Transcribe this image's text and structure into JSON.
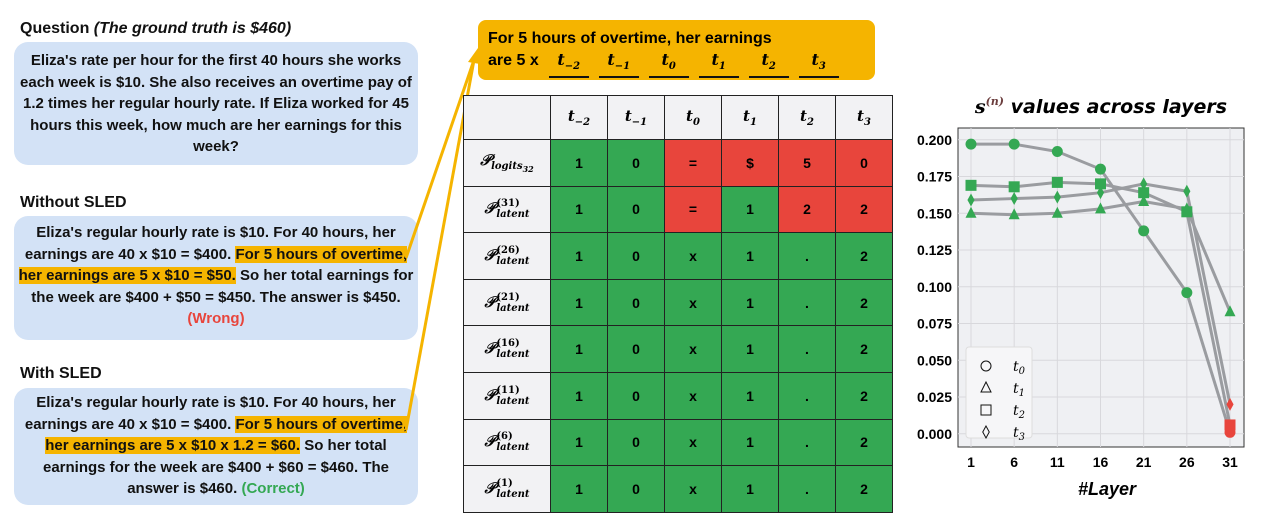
{
  "question": {
    "heading": "Question",
    "ground_truth": "(The ground truth is $460)",
    "text": "Eliza's rate per hour for the first 40 hours she works each week is $10. She also receives an overtime pay of 1.2 times her regular hourly rate. If Eliza worked for 45 hours this week, how much are her earnings for this week?"
  },
  "without": {
    "heading": "Without SLED",
    "pre": "Eliza's regular hourly rate is $10. For 40 hours, her earnings are 40 x $10 = $400. ",
    "highlight": "For 5 hours of overtime, her earnings are 5 x $10 = $50.",
    "post": " So her total earnings for the week are $400 + $50 = $450. The answer is $450. ",
    "verdict": "(Wrong)"
  },
  "with": {
    "heading": "With SLED",
    "pre": "Eliza's regular hourly rate is $10. For 40 hours, her earnings are 40 x $10 = $400. ",
    "highlight": "For 5 hours of overtime, her earnings are 5 x $10 x 1.2 = $60.",
    "post": " So her total earnings for the week are $400 + $60 = $460. The answer is $460. ",
    "verdict": "(Correct)"
  },
  "callout": {
    "line1": "For 5 hours of overtime, her earnings",
    "line2": "are 5 x",
    "tokens": [
      "t",
      "t",
      "t",
      "t",
      "t",
      "t"
    ],
    "subs": [
      "−2",
      "−1",
      "0",
      "1",
      "2",
      "3"
    ]
  },
  "table": {
    "columns": [
      {
        "t": "t",
        "s": "−2"
      },
      {
        "t": "t",
        "s": "−1"
      },
      {
        "t": "t",
        "s": "0"
      },
      {
        "t": "t",
        "s": "1"
      },
      {
        "t": "t",
        "s": "2"
      },
      {
        "t": "t",
        "s": "3"
      }
    ],
    "rows": [
      {
        "label": "𝒫",
        "sub": "logits",
        "subsub": "32",
        "sup": "",
        "cells": [
          "1",
          "0",
          "=",
          "$",
          "5",
          "0"
        ],
        "colors": [
          "g",
          "g",
          "r",
          "r",
          "r",
          "r"
        ]
      },
      {
        "label": "𝒫",
        "sub": "latent",
        "sup": "(31)",
        "cells": [
          "1",
          "0",
          "=",
          "1",
          "2",
          "2"
        ],
        "colors": [
          "g",
          "g",
          "r",
          "g",
          "r",
          "r"
        ]
      },
      {
        "label": "𝒫",
        "sub": "latent",
        "sup": "(26)",
        "cells": [
          "1",
          "0",
          "x",
          "1",
          ".",
          "2"
        ],
        "colors": [
          "g",
          "g",
          "g",
          "g",
          "g",
          "g"
        ]
      },
      {
        "label": "𝒫",
        "sub": "latent",
        "sup": "(21)",
        "cells": [
          "1",
          "0",
          "x",
          "1",
          ".",
          "2"
        ],
        "colors": [
          "g",
          "g",
          "g",
          "g",
          "g",
          "g"
        ]
      },
      {
        "label": "𝒫",
        "sub": "latent",
        "sup": "(16)",
        "cells": [
          "1",
          "0",
          "x",
          "1",
          ".",
          "2"
        ],
        "colors": [
          "g",
          "g",
          "g",
          "g",
          "g",
          "g"
        ]
      },
      {
        "label": "𝒫",
        "sub": "latent",
        "sup": "(11)",
        "cells": [
          "1",
          "0",
          "x",
          "1",
          ".",
          "2"
        ],
        "colors": [
          "g",
          "g",
          "g",
          "g",
          "g",
          "g"
        ]
      },
      {
        "label": "𝒫",
        "sub": "latent",
        "sup": "(6)",
        "cells": [
          "1",
          "0",
          "x",
          "1",
          ".",
          "2"
        ],
        "colors": [
          "g",
          "g",
          "g",
          "g",
          "g",
          "g"
        ]
      },
      {
        "label": "𝒫",
        "sub": "latent",
        "sup": "(1)",
        "cells": [
          "1",
          "0",
          "x",
          "1",
          ".",
          "2"
        ],
        "colors": [
          "g",
          "g",
          "g",
          "g",
          "g",
          "g"
        ]
      }
    ]
  },
  "colors": {
    "green": "#34a853",
    "red": "#e8453c",
    "line": "#9a9ca0",
    "highlight": "#f5b400"
  },
  "chart_data": {
    "type": "line",
    "title": "s",
    "title_sup": "(n)",
    "title_rest": " values across layers",
    "xlabel": "#Layer",
    "ylabel": "",
    "x": [
      1,
      6,
      11,
      16,
      21,
      26,
      31
    ],
    "xticks": [
      "1",
      "6",
      "11",
      "16",
      "21",
      "26",
      "31"
    ],
    "yticks": [
      "0.000",
      "0.025",
      "0.050",
      "0.075",
      "0.100",
      "0.125",
      "0.150",
      "0.175",
      "0.200"
    ],
    "ylim": [
      -0.009,
      0.208
    ],
    "grid": true,
    "legend": "lower-left",
    "series": [
      {
        "name": "t",
        "sub": "0",
        "marker": "circle",
        "values": [
          0.197,
          0.197,
          0.192,
          0.18,
          0.138,
          0.096,
          0.001
        ]
      },
      {
        "name": "t",
        "sub": "1",
        "marker": "triangle",
        "values": [
          0.15,
          0.149,
          0.15,
          0.153,
          0.158,
          0.153,
          0.083
        ]
      },
      {
        "name": "t",
        "sub": "2",
        "marker": "square",
        "values": [
          0.169,
          0.168,
          0.171,
          0.17,
          0.164,
          0.151,
          0.006
        ]
      },
      {
        "name": "t",
        "sub": "3",
        "marker": "diamond",
        "values": [
          0.159,
          0.16,
          0.161,
          0.164,
          0.17,
          0.165,
          0.02
        ]
      }
    ],
    "marker_colors_note": "green except red at layer 31 for t0,t2,t3"
  }
}
